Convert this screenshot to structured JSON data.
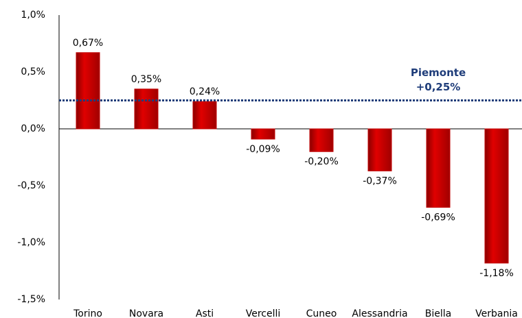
{
  "chart_data": {
    "type": "bar",
    "categories": [
      "Torino",
      "Novara",
      "Asti",
      "Vercelli",
      "Cuneo",
      "Alessandria",
      "Biella",
      "Verbania"
    ],
    "values": [
      0.67,
      0.35,
      0.24,
      -0.09,
      -0.2,
      -0.37,
      -0.69,
      -1.18
    ],
    "value_labels": [
      "0,67%",
      "0,35%",
      "0,24%",
      "-0,09%",
      "-0,20%",
      "-0,37%",
      "-0,69%",
      "-1,18%"
    ],
    "color": "#c00000",
    "ylim": [
      -1.5,
      1.0
    ],
    "yticks": [
      {
        "value": 1.0,
        "label": "1,0%"
      },
      {
        "value": 0.5,
        "label": "0,5%"
      },
      {
        "value": 0.0,
        "label": "0,0%"
      },
      {
        "value": -0.5,
        "label": "-0,5%"
      },
      {
        "value": -1.0,
        "label": "-1,0%"
      },
      {
        "value": -1.5,
        "label": "-1,5%"
      }
    ],
    "grid": false,
    "reference_line": {
      "name": "Piemonte",
      "value": 0.25,
      "label": "+0,25%",
      "color": "#1f3d7a"
    }
  }
}
